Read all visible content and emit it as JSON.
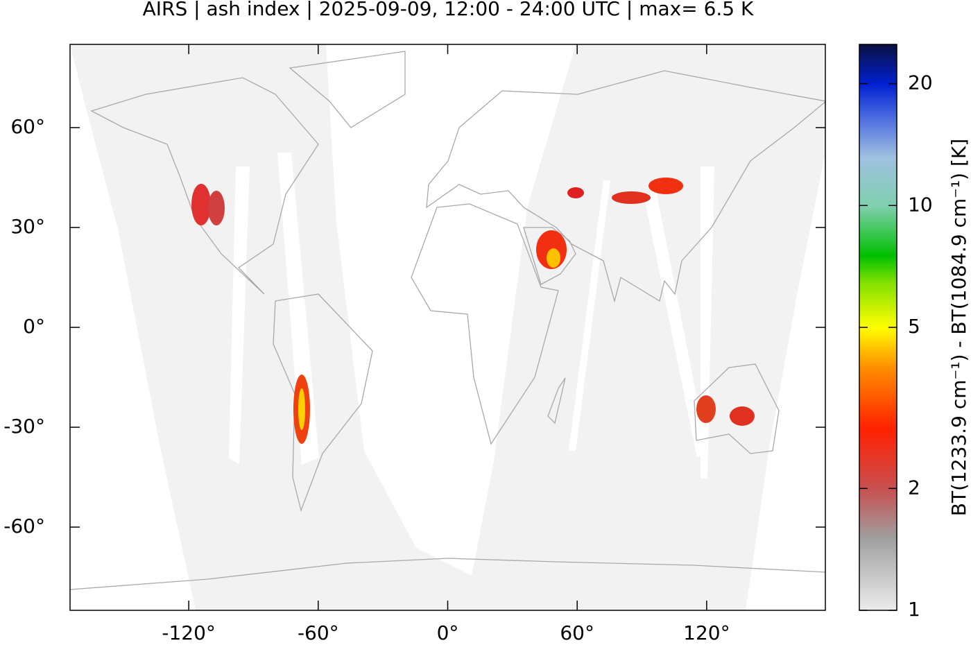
{
  "chart_data": {
    "type": "map",
    "title": "AIRS | ash index | 2025-09-09, 12:00 - 24:00 UTC | max= 6.5 K",
    "xlim": [
      -175,
      175
    ],
    "ylim": [
      -85,
      85
    ],
    "xticks": [
      {
        "value": -120,
        "label": "-120°"
      },
      {
        "value": -60,
        "label": "-60°"
      },
      {
        "value": 0,
        "label": "0°"
      },
      {
        "value": 60,
        "label": "60°"
      },
      {
        "value": 120,
        "label": "120°"
      }
    ],
    "yticks": [
      {
        "value": -60,
        "label": "-60°"
      },
      {
        "value": -30,
        "label": "-30°"
      },
      {
        "value": 0,
        "label": "0°"
      },
      {
        "value": 30,
        "label": "30°"
      },
      {
        "value": 60,
        "label": "60°"
      }
    ],
    "colorbar": {
      "label": "BT(1233.9 cm⁻¹) - BT(1084.9 cm⁻¹) [K]",
      "lim": [
        1,
        25
      ],
      "ticks": [
        1,
        2,
        5,
        10,
        20
      ],
      "log": true
    }
  }
}
